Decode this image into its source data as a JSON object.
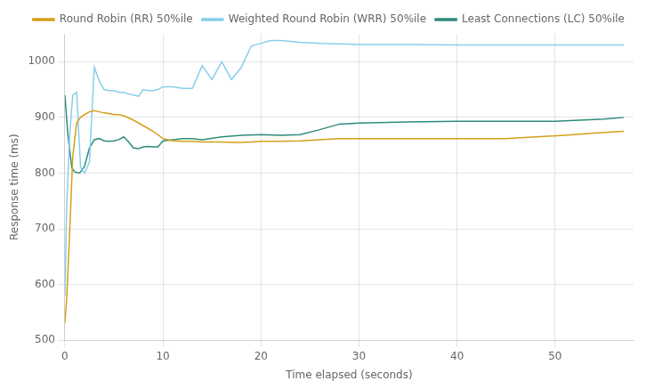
{
  "chart_data": {
    "type": "line",
    "xlabel": "Time elapsed (seconds)",
    "ylabel": "Response time (ms)",
    "xlim": [
      0,
      58
    ],
    "ylim": [
      500,
      1050
    ],
    "xticks": [
      0,
      10,
      20,
      30,
      40,
      50
    ],
    "yticks": [
      500,
      600,
      700,
      800,
      900,
      1000
    ],
    "grid": true,
    "legend": "upper right",
    "series": [
      {
        "name": "Round Robin (RR) 50%ile",
        "color": "#d4a017",
        "x": [
          0.0,
          0.2,
          0.5,
          0.8,
          1.2,
          1.6,
          2.0,
          2.5,
          3.0,
          3.5,
          4.0,
          4.5,
          5.0,
          5.5,
          6.0,
          7.0,
          8.0,
          9.0,
          10.0,
          11.0,
          12.0,
          13.0,
          14.0,
          15.0,
          16.0,
          17.0,
          18.0,
          19.0,
          20.0,
          22.0,
          24.0,
          26.0,
          28.0,
          30.0,
          35.0,
          40.0,
          45.0,
          48.0,
          51.0,
          54.0,
          57.0
        ],
        "values": [
          530,
          580,
          700,
          830,
          890,
          900,
          905,
          910,
          912,
          910,
          908,
          907,
          905,
          905,
          903,
          895,
          885,
          875,
          862,
          858,
          857,
          857,
          856,
          856,
          856,
          855,
          855,
          856,
          857,
          857,
          858,
          860,
          862,
          862,
          862,
          862,
          862,
          865,
          868,
          872,
          875
        ]
      },
      {
        "name": "Weighted Round Robin (WRR) 50%ile",
        "color": "#87ceeb",
        "x": [
          0.0,
          0.2,
          0.5,
          0.8,
          1.2,
          1.6,
          2.0,
          2.5,
          3.0,
          3.5,
          4.0,
          4.5,
          5.0,
          5.5,
          6.0,
          6.5,
          7.0,
          7.5,
          8.0,
          8.5,
          9.0,
          9.5,
          10.0,
          11.0,
          12.0,
          13.0,
          14.0,
          15.0,
          16.0,
          17.0,
          18.0,
          19.0,
          20.0,
          21.0,
          22.0,
          24.0,
          26.0,
          28.0,
          30.0,
          35.0,
          40.0,
          45.0,
          50.0,
          55.0,
          57.0
        ],
        "values": [
          580,
          750,
          870,
          940,
          945,
          810,
          800,
          820,
          990,
          965,
          950,
          948,
          948,
          945,
          945,
          942,
          940,
          938,
          950,
          948,
          948,
          950,
          955,
          955,
          952,
          952,
          993,
          968,
          1000,
          968,
          990,
          1028,
          1033,
          1038,
          1038,
          1035,
          1033,
          1032,
          1031,
          1031,
          1030,
          1030,
          1030,
          1030,
          1030
        ]
      },
      {
        "name": "Least Connections (LC) 50%ile",
        "color": "#2e8b7a",
        "x": [
          0.0,
          0.3,
          0.7,
          1.0,
          1.5,
          2.0,
          2.5,
          3.0,
          3.5,
          4.0,
          4.5,
          5.0,
          5.5,
          6.0,
          6.5,
          7.0,
          7.5,
          8.0,
          8.5,
          9.0,
          9.5,
          10.0,
          11.0,
          12.0,
          13.0,
          14.0,
          16.0,
          18.0,
          20.0,
          22.0,
          24.0,
          26.0,
          28.0,
          30.0,
          35.0,
          40.0,
          45.0,
          50.0,
          55.0,
          57.0
        ],
        "values": [
          940,
          870,
          810,
          802,
          800,
          812,
          845,
          860,
          862,
          858,
          857,
          858,
          860,
          865,
          856,
          845,
          844,
          847,
          848,
          847,
          847,
          858,
          860,
          862,
          862,
          860,
          865,
          868,
          869,
          868,
          869,
          878,
          888,
          890,
          892,
          893,
          893,
          893,
          897,
          900
        ]
      }
    ]
  }
}
